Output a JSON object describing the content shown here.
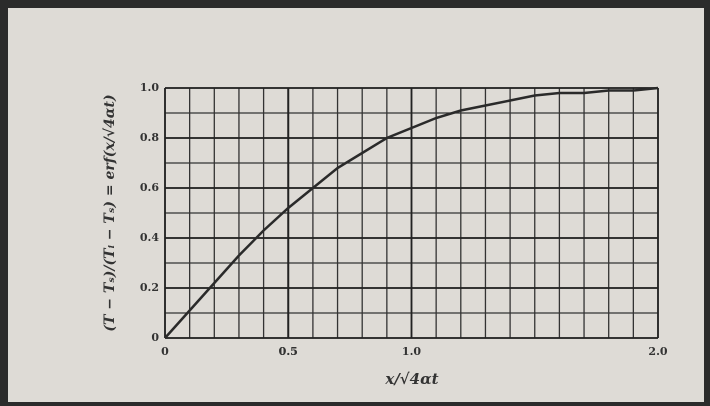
{
  "chart_data": {
    "type": "line",
    "xlabel": "x/√4αt",
    "ylabel": "(T − Tₛ)/(Tᵢ − Tₛ) = erf(x/√4αt)",
    "x": [
      0,
      0.1,
      0.2,
      0.3,
      0.4,
      0.5,
      0.6,
      0.7,
      0.8,
      0.9,
      1.0,
      1.1,
      1.2,
      1.3,
      1.4,
      1.5,
      1.6,
      1.7,
      1.8,
      1.9,
      2.0
    ],
    "series": [
      {
        "color": "#2a2a2a",
        "values": [
          0,
          0.11,
          0.22,
          0.33,
          0.43,
          0.52,
          0.6,
          0.68,
          0.74,
          0.8,
          0.84,
          0.88,
          0.91,
          0.93,
          0.95,
          0.97,
          0.98,
          0.98,
          0.99,
          0.99,
          1.0
        ]
      }
    ],
    "xlim": [
      0,
      2
    ],
    "ylim": [
      0,
      1
    ],
    "xticks": [
      0,
      0.5,
      {
        "value": 1,
        "label": "1.0"
      },
      0.5,
      {
        "value": 2,
        "label": "2.0"
      }
    ],
    "yticks": [
      0,
      0.2,
      0.4,
      0.6,
      0.8,
      {
        "value": 1,
        "label": "1.0"
      }
    ],
    "grid": true
  }
}
